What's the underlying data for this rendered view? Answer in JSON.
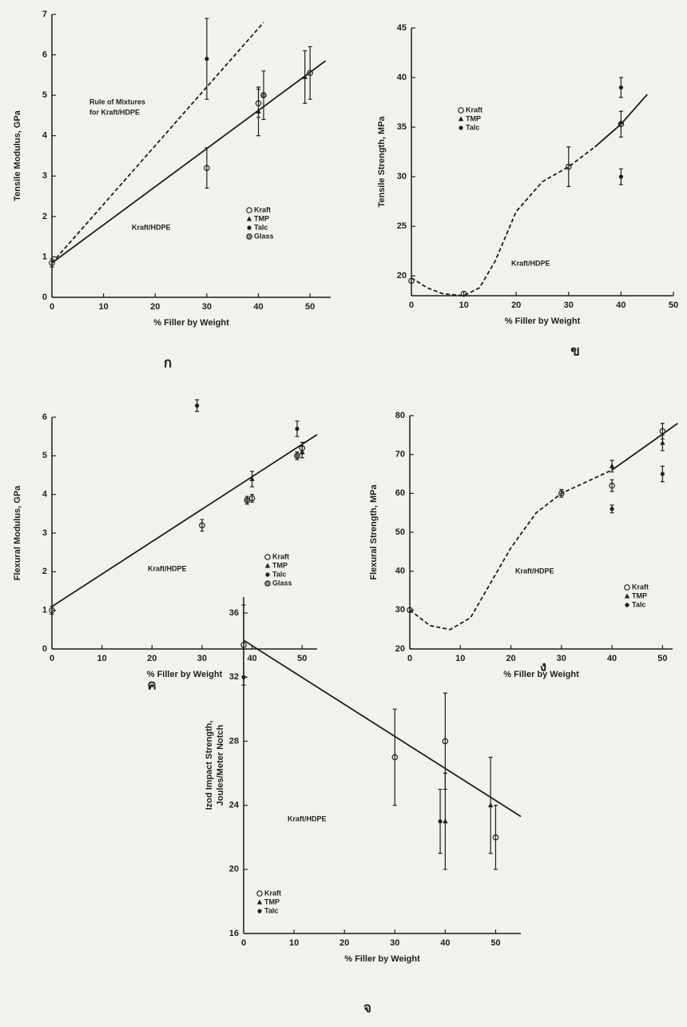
{
  "chart_data": [
    {
      "type": "scatter",
      "color": "#1e1e1e",
      "panel_label": "ก",
      "ylabel": "Tensile Modulus, GPa",
      "xlabel": "% Filler by Weight",
      "xlim": [
        0,
        54
      ],
      "ylim": [
        0,
        7
      ],
      "xticks": [
        0,
        10,
        20,
        30,
        40,
        50
      ],
      "yticks": [
        0,
        1,
        2,
        3,
        4,
        5,
        6,
        7
      ],
      "series": [
        {
          "name": "Kraft",
          "marker": "circle",
          "x": [
            0,
            30,
            40,
            50
          ],
          "values": [
            0.85,
            3.2,
            4.8,
            5.55
          ],
          "errors": [
            0.1,
            0.5,
            0.35,
            0.65
          ]
        },
        {
          "name": "TMP",
          "marker": "triangle",
          "x": [
            40,
            49
          ],
          "values": [
            4.6,
            5.45
          ],
          "errors": [
            0.6,
            0.65
          ]
        },
        {
          "name": "Talc",
          "marker": "dot",
          "x": [
            30
          ],
          "values": [
            5.9
          ],
          "errors": [
            1.0
          ]
        },
        {
          "name": "Glass",
          "marker": "circle-dot",
          "x": [
            41
          ],
          "values": [
            5.0
          ],
          "errors": [
            0.6
          ]
        }
      ],
      "lines": [
        {
          "style": "solid",
          "x": [
            0,
            53
          ],
          "values": [
            0.85,
            5.85
          ]
        },
        {
          "style": "dashed",
          "x": [
            0,
            41
          ],
          "values": [
            0.85,
            6.8
          ]
        }
      ],
      "annotations": [
        "Rule of Mixtures",
        "for Kraft/HDPE",
        "Kraft/HDPE"
      ]
    },
    {
      "type": "scatter",
      "color": "#1e1e1e",
      "panel_label": "ข",
      "ylabel": "Tensile Strength, MPa",
      "xlabel": "% Filler by Weight",
      "xlim": [
        0,
        50
      ],
      "ylim": [
        18,
        45
      ],
      "xticks": [
        0,
        10,
        20,
        30,
        40,
        50
      ],
      "yticks": [
        20,
        25,
        30,
        35,
        40,
        45
      ],
      "series": [
        {
          "name": "Kraft",
          "marker": "circle",
          "x": [
            0,
            10,
            30,
            40
          ],
          "values": [
            19.5,
            18.2,
            31,
            35.3
          ],
          "errors": [
            null,
            null,
            2,
            1.3
          ]
        },
        {
          "name": "TMP",
          "marker": "triangle",
          "x": [
            40
          ],
          "values": [
            35.5
          ],
          "errors": [
            null
          ]
        },
        {
          "name": "Talc",
          "marker": "dot",
          "x": [
            40,
            40
          ],
          "values": [
            39,
            30
          ],
          "errors": [
            1,
            0.8
          ]
        }
      ],
      "lines": [
        {
          "style": "dashed",
          "x": [
            0,
            3,
            6,
            10,
            13,
            16,
            20,
            25,
            30,
            35
          ],
          "values": [
            19.8,
            18.8,
            18.2,
            18,
            18.8,
            21.5,
            26.5,
            29.5,
            31,
            33
          ]
        },
        {
          "style": "solid",
          "x": [
            35,
            40,
            45
          ],
          "values": [
            33,
            35.3,
            38.3
          ]
        }
      ],
      "annotations": [
        "Kraft/HDPE"
      ]
    },
    {
      "type": "scatter",
      "color": "#1e1e1e",
      "panel_label": "ค",
      "ylabel": "Flexural Modulus, GPa",
      "xlabel": "% Filler by Weight",
      "xlim": [
        0,
        53
      ],
      "ylim": [
        0,
        6
      ],
      "xticks": [
        0,
        10,
        20,
        30,
        40,
        50
      ],
      "yticks": [
        0,
        1,
        2,
        3,
        4,
        5,
        6
      ],
      "series": [
        {
          "name": "Kraft",
          "marker": "circle",
          "x": [
            0,
            30,
            40,
            50
          ],
          "values": [
            1.0,
            3.2,
            3.9,
            5.2
          ],
          "errors": [
            0.1,
            0.15,
            0.1,
            0.15
          ]
        },
        {
          "name": "TMP",
          "marker": "triangle",
          "x": [
            40,
            50
          ],
          "values": [
            4.4,
            5.1
          ],
          "errors": [
            0.2,
            0.15
          ]
        },
        {
          "name": "Talc",
          "marker": "dot",
          "x": [
            29,
            49
          ],
          "values": [
            6.3,
            5.7
          ],
          "errors": [
            0.15,
            0.2
          ]
        },
        {
          "name": "Glass",
          "marker": "circle-dot",
          "x": [
            39,
            49
          ],
          "values": [
            3.85,
            5.0
          ],
          "errors": [
            0.1,
            0.1
          ]
        }
      ],
      "lines": [
        {
          "style": "solid",
          "x": [
            0,
            53
          ],
          "values": [
            1.1,
            5.55
          ]
        }
      ],
      "annotations": [
        "Kraft/HDPE"
      ]
    },
    {
      "type": "scatter",
      "color": "#1e1e1e",
      "panel_label": "ง",
      "ylabel": "Flexural Strength, MPa",
      "xlabel": "% Filler by Weight",
      "xlim": [
        0,
        52
      ],
      "ylim": [
        20,
        80
      ],
      "xticks": [
        0,
        10,
        20,
        30,
        40,
        50
      ],
      "yticks": [
        20,
        30,
        40,
        50,
        60,
        70,
        80
      ],
      "series": [
        {
          "name": "Kraft",
          "marker": "circle",
          "x": [
            0,
            30,
            40,
            50
          ],
          "values": [
            30,
            60,
            62,
            76
          ],
          "errors": [
            null,
            1,
            1.5,
            2
          ]
        },
        {
          "name": "TMP",
          "marker": "triangle",
          "x": [
            40,
            50
          ],
          "values": [
            67,
            73
          ],
          "errors": [
            1.5,
            2
          ]
        },
        {
          "name": "Talc",
          "marker": "dot",
          "x": [
            40,
            50
          ],
          "values": [
            56,
            65
          ],
          "errors": [
            1,
            2
          ]
        }
      ],
      "lines": [
        {
          "style": "dashed",
          "x": [
            0,
            4,
            8,
            12,
            16,
            20,
            25,
            30,
            35,
            40
          ],
          "values": [
            30,
            26,
            25,
            28,
            37,
            46,
            55,
            60,
            63,
            66
          ]
        },
        {
          "style": "solid",
          "x": [
            40,
            53
          ],
          "values": [
            66,
            78
          ]
        }
      ],
      "annotations": [
        "Kraft/HDPE"
      ]
    },
    {
      "type": "scatter",
      "color": "#1e1e1e",
      "panel_label": "จ",
      "ylabel": [
        "Izod Impact Strength,",
        "Joules/Meter Notch"
      ],
      "xlabel": "% Filler by Weight",
      "xlim": [
        0,
        55
      ],
      "ylim": [
        16,
        37
      ],
      "xticks": [
        0,
        10,
        20,
        30,
        40,
        50
      ],
      "yticks": [
        16,
        20,
        24,
        28,
        32,
        36
      ],
      "series": [
        {
          "name": "Kraft",
          "marker": "circle",
          "x": [
            0,
            30,
            40,
            50
          ],
          "values": [
            34,
            27,
            28,
            22
          ],
          "errors": [
            2.5,
            3,
            3,
            2
          ]
        },
        {
          "name": "TMP",
          "marker": "triangle",
          "x": [
            40,
            49
          ],
          "values": [
            23,
            24
          ],
          "errors": [
            3,
            3
          ]
        },
        {
          "name": "Talc",
          "marker": "dot",
          "x": [
            39,
            0
          ],
          "values": [
            23,
            32
          ],
          "errors": [
            2,
            null
          ]
        }
      ],
      "lines": [
        {
          "style": "solid",
          "x": [
            0,
            55
          ],
          "values": [
            34.3,
            23.3
          ]
        }
      ],
      "annotations": [
        "Kraft/HDPE"
      ]
    }
  ]
}
